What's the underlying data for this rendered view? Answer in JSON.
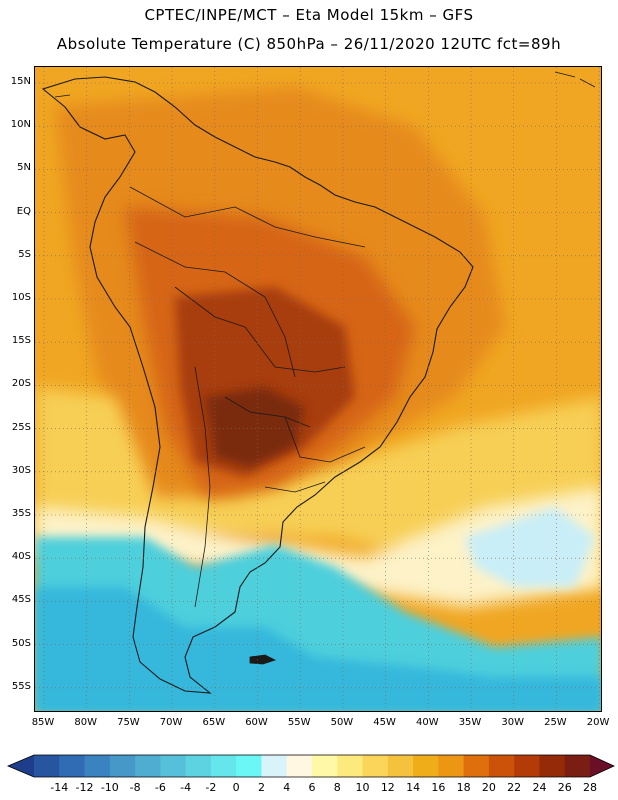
{
  "header": {
    "line1": "CPTEC/INPE/MCT –  Eta Model 15km – GFS",
    "line2": "Absolute Temperature (C) 850hPa – 26/11/2020 12UTC fct=89h"
  },
  "map": {
    "region": "South America",
    "lat_labels": [
      "15N",
      "10N",
      "5N",
      "EQ",
      "5S",
      "10S",
      "15S",
      "20S",
      "25S",
      "30S",
      "35S",
      "40S",
      "45S",
      "50S",
      "55S"
    ],
    "lon_labels": [
      "85W",
      "80W",
      "75W",
      "70W",
      "65W",
      "60W",
      "55W",
      "50W",
      "45W",
      "40W",
      "35W",
      "30W",
      "25W",
      "20W"
    ]
  },
  "colorbar": {
    "ticks": [
      "-14",
      "-12",
      "-10",
      "-8",
      "-6",
      "-4",
      "-2",
      "0",
      "2",
      "4",
      "6",
      "8",
      "10",
      "12",
      "14",
      "16",
      "18",
      "20",
      "22",
      "24",
      "26",
      "28"
    ],
    "colors": [
      "#1e3e8c",
      "#2755a0",
      "#2f6cb4",
      "#3b83c0",
      "#4698c8",
      "#4fadd2",
      "#56c0da",
      "#5dd3e2",
      "#64e6ec",
      "#6cf7f7",
      "#d9f3fb",
      "#fff7e1",
      "#fff8a6",
      "#fdea7c",
      "#fbd55a",
      "#f5c23d",
      "#efad1a",
      "#ec9614",
      "#de6f0c",
      "#cc5209",
      "#b33b08",
      "#952a09",
      "#7a1e14",
      "#6b0f28"
    ]
  },
  "field": {
    "background": "#f0a622",
    "ocean_south": "#4ecfdc",
    "ocean_deep": "#34b8dc",
    "cold_pocket": "#c9eef7",
    "warm_core": "#7a2a10",
    "hot": "#a83c0e",
    "warmer": "#d66515",
    "warm": "#e68a1a",
    "mild": "#f7cf55",
    "cool": "#fbe07a",
    "pale": "#fdf2c8",
    "land_outline": "#1a1a1a"
  }
}
